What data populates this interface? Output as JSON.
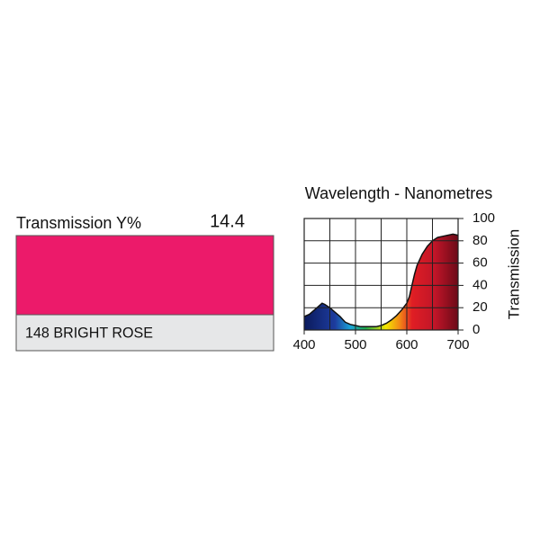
{
  "swatch": {
    "label": "Transmission Y%",
    "value": 14.4,
    "name": "148 BRIGHT ROSE",
    "color": "#ec1a6a"
  },
  "chart_data": {
    "type": "area",
    "title": "Wavelength - Nanometres",
    "y_label": "Transmission",
    "x": [
      400,
      410,
      420,
      430,
      435,
      440,
      450,
      460,
      470,
      480,
      490,
      500,
      510,
      520,
      530,
      540,
      550,
      560,
      570,
      580,
      590,
      600,
      605,
      610,
      615,
      620,
      630,
      640,
      650,
      660,
      670,
      680,
      690,
      700
    ],
    "values": [
      12,
      14,
      18,
      22,
      24,
      23,
      20,
      16,
      12,
      7,
      5,
      4,
      3,
      3,
      3,
      3,
      4,
      6,
      9,
      13,
      18,
      24,
      30,
      40,
      50,
      58,
      68,
      75,
      80,
      83,
      84,
      85,
      86,
      85
    ],
    "xlim": [
      400,
      700
    ],
    "ylim": [
      0,
      100
    ],
    "xticks": [
      400,
      500,
      600,
      700
    ],
    "yticks": [
      0,
      20,
      40,
      60,
      80,
      100
    ],
    "xgrid": [
      400,
      450,
      500,
      550,
      600,
      650,
      700
    ],
    "grid": true
  }
}
